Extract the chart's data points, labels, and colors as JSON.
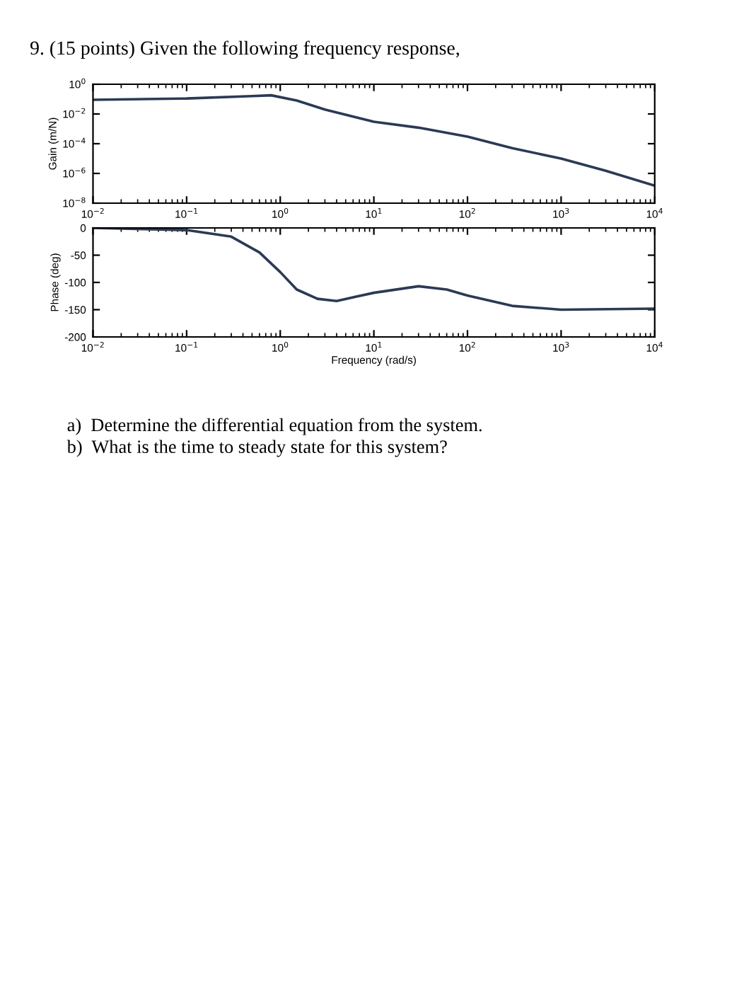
{
  "chart_data": [
    {
      "type": "line",
      "title": "9. (15 points) Given the following frequency response,",
      "ylabel": "Gain (m/N)",
      "log": "xy",
      "x": [
        0.01,
        0.1,
        0.5,
        0.8,
        1.5,
        3,
        10,
        30,
        100,
        300,
        1000,
        3000,
        10000
      ],
      "series": [
        {
          "color": "#2b3a55",
          "values": [
            0.09,
            0.11,
            0.16,
            0.18,
            0.08,
            0.02,
            0.003,
            0.0012,
            0.0003,
            5e-05,
            1e-05,
            1.5e-06,
            1.5e-07
          ]
        }
      ],
      "xlim": [
        0.01,
        10000
      ],
      "ylim": [
        1e-08,
        1
      ],
      "xticks": [
        {
          "value": 0.01,
          "label": "10$^{−2}$"
        },
        {
          "value": 0.1,
          "label": "10$^{−1}$"
        },
        {
          "value": 1,
          "label": "10$^{0}$"
        },
        {
          "value": 10,
          "label": "10$^{1}$"
        },
        {
          "value": 100,
          "label": "10$^{2}$"
        },
        {
          "value": 1000,
          "label": "10$^{3}$"
        },
        {
          "value": 10000,
          "label": "10$^{4}$"
        }
      ],
      "yticks": [
        {
          "value": 1e-08,
          "label": "10$^{−8}$"
        },
        {
          "value": 1e-06,
          "label": "10$^{−6}$"
        },
        {
          "value": 0.0001,
          "label": "10$^{−4}$"
        },
        {
          "value": 0.01,
          "label": "10$^{−2}$"
        },
        {
          "value": 1,
          "label": "10$^{0}$"
        }
      ],
      "grid": false,
      "legend": false
    },
    {
      "type": "line",
      "xlabel": "Frequency (rad/s)",
      "ylabel": "Phase (deg)",
      "log": "x",
      "x": [
        0.01,
        0.1,
        0.3,
        0.6,
        1,
        1.5,
        2.5,
        4,
        10,
        30,
        60,
        100,
        300,
        1000,
        10000
      ],
      "series": [
        {
          "color": "#2b3a55",
          "values": [
            0,
            -4,
            -16,
            -45,
            -81,
            -113,
            -130,
            -134,
            -119,
            -107,
            -113,
            -124,
            -143,
            -150,
            -148
          ]
        }
      ],
      "xlim": [
        0.01,
        10000
      ],
      "ylim": [
        -200,
        0
      ],
      "xticks": [
        {
          "value": 0.01,
          "label": "10$^{−2}$"
        },
        {
          "value": 0.1,
          "label": "10$^{−1}$"
        },
        {
          "value": 1,
          "label": "10$^{0}$"
        },
        {
          "value": 10,
          "label": "10$^{1}$"
        },
        {
          "value": 100,
          "label": "10$^{2}$"
        },
        {
          "value": 1000,
          "label": "10$^{3}$"
        },
        {
          "value": 10000,
          "label": "10$^{4}$"
        }
      ],
      "yticks": [
        -200,
        -150,
        -100,
        -50,
        0
      ],
      "grid": false,
      "legend": false,
      "annotations": [
        "a)  Determine the differential equation from the system.",
        "b)  What is the time to steady state for this system?"
      ]
    }
  ]
}
